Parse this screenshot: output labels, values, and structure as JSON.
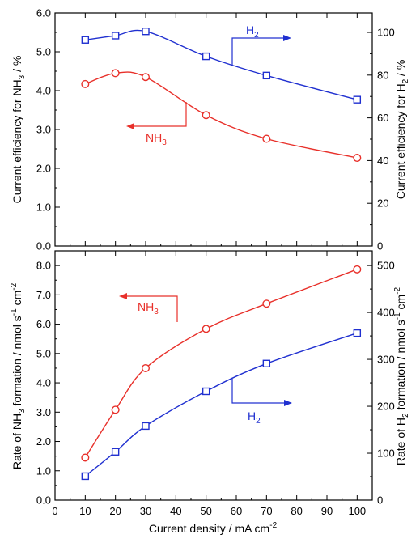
{
  "colors": {
    "nh3": "#e8302a",
    "h2": "#2030d0",
    "axis": "#000000"
  },
  "xaxis": {
    "label": "Current density / mA cm",
    "label_sup": "-2",
    "ticks": [
      0,
      10,
      20,
      30,
      40,
      50,
      60,
      70,
      80,
      90,
      100
    ],
    "range": [
      0,
      105
    ]
  },
  "chart_data": [
    {
      "type": "line",
      "panel": "top",
      "x": [
        10,
        20,
        30,
        50,
        70,
        100
      ],
      "series": [
        {
          "name": "NH3",
          "axis": "left",
          "marker": "circle",
          "color": "#e8302a",
          "values": [
            4.17,
            4.45,
            4.35,
            3.37,
            2.76,
            2.27
          ]
        },
        {
          "name": "H2",
          "axis": "right",
          "marker": "square",
          "color": "#2030d0",
          "values": [
            96.5,
            98.5,
            100.5,
            88.8,
            79.8,
            68.5
          ]
        }
      ],
      "left_axis": {
        "label": {
          "pre": "Current efficiency for NH",
          "sub": "3",
          "post": " / %"
        },
        "ylim": [
          0,
          6
        ],
        "ticks": [
          "0.0",
          "1.0",
          "2.0",
          "3.0",
          "4.0",
          "5.0",
          "6.0"
        ]
      },
      "right_axis": {
        "label": {
          "pre": "Current efficiency for H",
          "sub": "2",
          "post": " / %"
        },
        "ylim": [
          0,
          109.1
        ],
        "ticks": [
          "0",
          "20",
          "40",
          "60",
          "80",
          "100"
        ]
      },
      "annotations": [
        {
          "text": "H",
          "sub": "2",
          "color": "#2030d0",
          "direction": "right"
        },
        {
          "text": "NH",
          "sub": "3",
          "color": "#e8302a",
          "direction": "left"
        }
      ]
    },
    {
      "type": "line",
      "panel": "bottom",
      "x": [
        10,
        20,
        30,
        50,
        70,
        100
      ],
      "series": [
        {
          "name": "NH3",
          "axis": "left",
          "marker": "circle",
          "color": "#e8302a",
          "values": [
            1.45,
            3.08,
            4.5,
            5.84,
            6.7,
            7.87
          ]
        },
        {
          "name": "H2",
          "axis": "right",
          "marker": "square",
          "color": "#2030d0",
          "values": [
            51,
            103,
            158,
            232,
            291,
            356
          ]
        }
      ],
      "left_axis": {
        "label": {
          "pre": "Rate of NH",
          "sub": "3",
          "post": " formation / nmol s",
          "sup1": "-1",
          "mid": " cm",
          "sup2": "-2"
        },
        "ylim": [
          0,
          8.5
        ],
        "ticks": [
          "0.0",
          "1.0",
          "2.0",
          "3.0",
          "4.0",
          "5.0",
          "6.0",
          "7.0",
          "8.0"
        ]
      },
      "right_axis": {
        "label": {
          "pre": "Rate of H",
          "sub": "2",
          "post": " formation / nmol s",
          "sup1": "-1",
          "mid": " cm",
          "sup2": "-2"
        },
        "ylim": [
          0,
          531.25
        ],
        "ticks": [
          "0",
          "100",
          "200",
          "300",
          "400",
          "500"
        ]
      },
      "annotations": [
        {
          "text": "NH",
          "sub": "3",
          "color": "#e8302a",
          "direction": "left"
        },
        {
          "text": "H",
          "sub": "2",
          "color": "#2030d0",
          "direction": "right"
        }
      ]
    }
  ]
}
